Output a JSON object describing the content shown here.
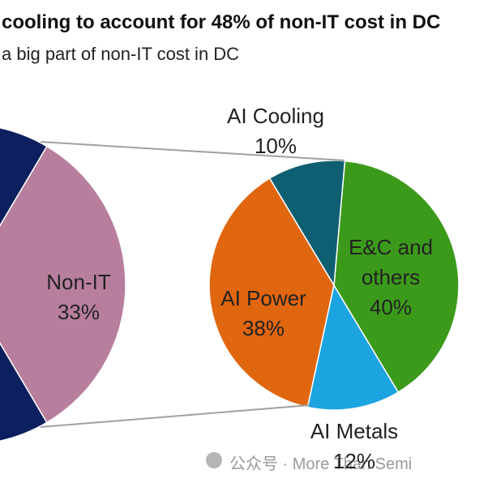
{
  "title": "cooling to account for 48% of non-IT cost in DC",
  "subtitle": "a big part of non-IT cost in DC",
  "watermark": "公众号 · More Than Semi",
  "chart_data": {
    "type": "pie-of-pie",
    "pies": [
      {
        "categories": [
          null,
          "Non-IT"
        ],
        "values": [
          67,
          33
        ],
        "value_labels": [
          null,
          "33%"
        ],
        "colors": [
          "#0c1f5e",
          "#b87e9d"
        ]
      },
      {
        "categories": [
          "AI Cooling",
          "E&C and others",
          "AI Metals",
          "AI Power"
        ],
        "values": [
          10,
          40,
          12,
          38
        ],
        "value_labels": [
          "10%",
          "40%",
          "12%",
          "38%"
        ],
        "colors": [
          "#0f5f73",
          "#3c9a1b",
          "#1ca4e0",
          "#e0660f"
        ]
      }
    ]
  }
}
